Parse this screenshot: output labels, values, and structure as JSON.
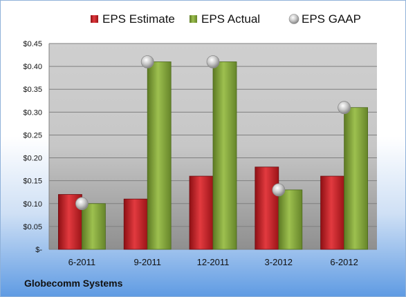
{
  "chart_data": {
    "type": "bar",
    "categories": [
      "6-2011",
      "9-2011",
      "12-2011",
      "3-2012",
      "6-2012"
    ],
    "series": [
      {
        "name": "EPS Estimate",
        "kind": "bar",
        "color": "#d8232a",
        "values": [
          0.12,
          0.11,
          0.16,
          0.18,
          0.16
        ]
      },
      {
        "name": "EPS Actual",
        "kind": "bar",
        "color": "#8db046",
        "values": [
          0.1,
          0.41,
          0.41,
          0.13,
          0.31
        ]
      },
      {
        "name": "EPS GAAP",
        "kind": "marker",
        "color": "#b4b4b4",
        "values": [
          0.1,
          0.41,
          0.41,
          0.13,
          0.31
        ]
      }
    ],
    "ylim": [
      0,
      0.45
    ],
    "yticks": [
      {
        "value": 0.45,
        "label": "$0.45"
      },
      {
        "value": 0.4,
        "label": "$0.40"
      },
      {
        "value": 0.35,
        "label": "$0.35"
      },
      {
        "value": 0.3,
        "label": "$0.30"
      },
      {
        "value": 0.25,
        "label": "$0.25"
      },
      {
        "value": 0.2,
        "label": "$0.20"
      },
      {
        "value": 0.15,
        "label": "$0.15"
      },
      {
        "value": 0.1,
        "label": "$0.10"
      },
      {
        "value": 0.05,
        "label": "$0.05"
      },
      {
        "value": 0.0,
        "label": "$-"
      }
    ],
    "grid": true,
    "legend": "top-center"
  },
  "footer": {
    "company": "Globecomm Systems"
  }
}
